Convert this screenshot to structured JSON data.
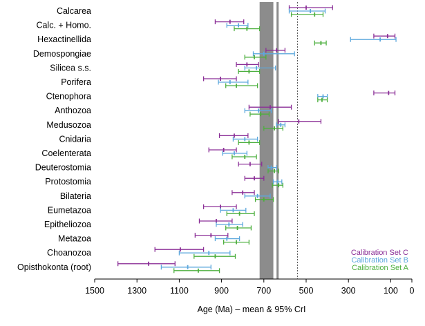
{
  "chart_data": {
    "type": "interval",
    "xlabel": "Age (Ma) – mean & 95% CrI",
    "xlim": [
      1500,
      0
    ],
    "x_ticks": [
      1500,
      1300,
      1100,
      900,
      700,
      500,
      300,
      100,
      0
    ],
    "x_reversed": true,
    "series": [
      {
        "name": "Calibration Set C",
        "color": "#8B2F97"
      },
      {
        "name": "Calibration Set B",
        "color": "#5DA8DD"
      },
      {
        "name": "Calibration Set A",
        "color": "#4CAF3E"
      }
    ],
    "legend_position": "bottom-right",
    "shaded_bands": [
      {
        "from": 720,
        "to": 655,
        "color": "#8c8c8c"
      },
      {
        "from": 640,
        "to": 630,
        "color": "#8c8c8c"
      }
    ],
    "reference_line": {
      "x": 541,
      "style": "dashed"
    },
    "clades": [
      {
        "name": "Calcarea",
        "C": [
          580,
          500,
          375
        ],
        "B": [
          580,
          480,
          410
        ],
        "A": [
          570,
          460,
          420
        ]
      },
      {
        "name": "Calc. + Homo.",
        "C": [
          930,
          860,
          795
        ],
        "B": [
          875,
          820,
          775
        ],
        "A": [
          840,
          780,
          720
        ]
      },
      {
        "name": "Hexactinellida",
        "C": [
          180,
          115,
          80
        ],
        "B": [
          290,
          150,
          75
        ],
        "A": [
          460,
          430,
          405
        ]
      },
      {
        "name": "Demospongiae",
        "C": [
          690,
          640,
          600
        ],
        "B": [
          750,
          700,
          555
        ],
        "A": [
          790,
          745,
          690
        ]
      },
      {
        "name": "Silicea s.s.",
        "C": [
          830,
          780,
          725
        ],
        "B": [
          790,
          735,
          645
        ],
        "A": [
          820,
          770,
          720
        ]
      },
      {
        "name": "Porifera",
        "C": [
          985,
          905,
          830
        ],
        "B": [
          915,
          860,
          775
        ],
        "A": [
          880,
          830,
          730
        ]
      },
      {
        "name": "Ctenophora",
        "C": [
          180,
          110,
          80
        ],
        "B": [
          445,
          420,
          400
        ],
        "A": [
          445,
          425,
          400
        ]
      },
      {
        "name": "Anthozoa",
        "C": [
          770,
          670,
          570
        ],
        "B": [
          790,
          725,
          665
        ],
        "A": [
          765,
          715,
          675
        ]
      },
      {
        "name": "Medusozoa",
        "C": [
          630,
          535,
          430
        ],
        "B": [
          640,
          620,
          600
        ],
        "A": [
          700,
          650,
          610
        ]
      },
      {
        "name": "Cnidaria",
        "C": [
          910,
          840,
          775
        ],
        "B": [
          845,
          790,
          730
        ],
        "A": [
          820,
          770,
          720
        ]
      },
      {
        "name": "Coelenterata",
        "C": [
          960,
          890,
          830
        ],
        "B": [
          895,
          840,
          780
        ],
        "A": [
          850,
          790,
          735
        ]
      },
      {
        "name": "Deuterostomia",
        "C": [
          820,
          765,
          710
        ],
        "B": [
          680,
          665,
          640
        ],
        "A": [
          680,
          650,
          630
        ]
      },
      {
        "name": "Protostomia",
        "C": [
          790,
          745,
          700
        ],
        "B": [
          655,
          635,
          615
        ],
        "A": [
          660,
          630,
          610
        ]
      },
      {
        "name": "Bilateria",
        "C": [
          850,
          800,
          745
        ],
        "B": [
          790,
          730,
          670
        ],
        "A": [
          740,
          700,
          655
        ]
      },
      {
        "name": "Eumetazoa",
        "C": [
          985,
          905,
          830
        ],
        "B": [
          905,
          845,
          785
        ],
        "A": [
          875,
          815,
          745
        ]
      },
      {
        "name": "Epitheliozoa",
        "C": [
          1005,
          925,
          850
        ],
        "B": [
          925,
          865,
          800
        ],
        "A": [
          880,
          825,
          760
        ]
      },
      {
        "name": "Metazoa",
        "C": [
          1025,
          950,
          870
        ],
        "B": [
          930,
          875,
          815
        ],
        "A": [
          890,
          830,
          770
        ]
      },
      {
        "name": "Choanozoa",
        "C": [
          1215,
          1095,
          985
        ],
        "B": [
          1100,
          960,
          860
        ],
        "A": [
          1030,
          930,
          835
        ]
      },
      {
        "name": "Opisthokonta (root)",
        "C": [
          1390,
          1245,
          1120
        ],
        "B": [
          1185,
          1060,
          950
        ],
        "A": [
          1125,
          1010,
          910
        ]
      }
    ]
  }
}
